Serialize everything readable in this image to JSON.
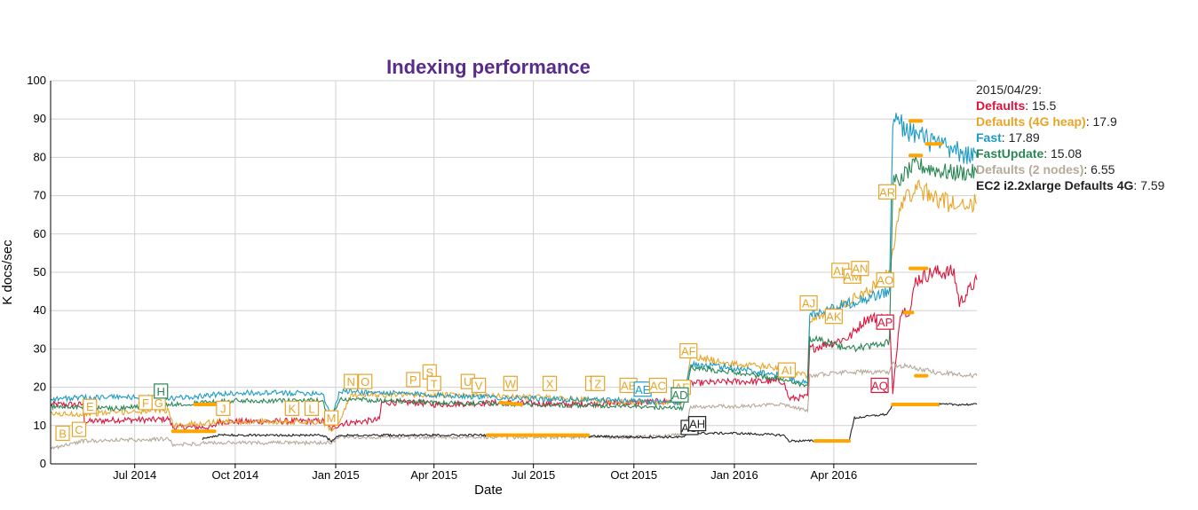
{
  "chart_data": {
    "type": "line",
    "title": "Indexing performance",
    "xlabel": "Date",
    "ylabel": "K docs/sec",
    "xlim": [
      "2014-04-15",
      "2016-08-10"
    ],
    "ylim": [
      0,
      100
    ],
    "y_ticks": [
      0,
      10,
      20,
      30,
      40,
      50,
      60,
      70,
      80,
      90,
      100
    ],
    "x_ticks": [
      {
        "date": "2014-07-01",
        "label": "Jul 2014"
      },
      {
        "date": "2014-10-01",
        "label": "Oct 2014"
      },
      {
        "date": "2015-01-01",
        "label": "Jan 2015"
      },
      {
        "date": "2015-04-01",
        "label": "Apr 2015"
      },
      {
        "date": "2015-07-01",
        "label": "Jul 2015"
      },
      {
        "date": "2015-10-01",
        "label": "Oct 2015"
      },
      {
        "date": "2016-01-01",
        "label": "Jan 2016"
      },
      {
        "date": "2016-04-01",
        "label": "Apr 2016"
      }
    ],
    "grid": true,
    "legend_placement": "right",
    "legend": {
      "date": "2015/04/29:",
      "entries": [
        {
          "name": "Defaults",
          "value": "15.5",
          "color": "#dc143c"
        },
        {
          "name": "Defaults (4G heap)",
          "value": "17.9",
          "color": "#e8a427"
        },
        {
          "name": "Fast",
          "value": "17.89",
          "color": "#1d9bc4"
        },
        {
          "name": "FastUpdate",
          "value": "15.08",
          "color": "#2a8653"
        },
        {
          "name": "Defaults (2 nodes)",
          "value": "6.55",
          "color": "#b5aa99"
        },
        {
          "name": "EC2 i2.2xlarge Defaults 4G",
          "value": "7.59",
          "color": "#222222"
        }
      ]
    },
    "series": [
      {
        "name": "Defaults",
        "color": "#dc143c",
        "noise": 0.8,
        "points": [
          [
            "2014-04-15",
            15.5
          ],
          [
            "2014-05-15",
            15.5
          ],
          [
            "2014-05-16",
            11
          ],
          [
            "2014-06-15",
            11.5
          ],
          [
            "2014-07-20",
            11.5
          ],
          [
            "2014-08-01",
            11.8
          ],
          [
            "2014-08-05",
            9.5
          ],
          [
            "2014-09-12",
            9.6
          ],
          [
            "2014-09-15",
            11
          ],
          [
            "2014-12-20",
            11.2
          ],
          [
            "2014-12-28",
            9
          ],
          [
            "2015-01-05",
            10.5
          ],
          [
            "2015-02-10",
            11.5
          ],
          [
            "2015-02-12",
            16
          ],
          [
            "2015-03-15",
            16
          ],
          [
            "2015-04-01",
            15.5
          ],
          [
            "2015-06-01",
            16
          ],
          [
            "2015-08-01",
            15.5
          ],
          [
            "2015-10-01",
            16
          ],
          [
            "2015-11-15",
            16.5
          ],
          [
            "2015-11-22",
            21
          ],
          [
            "2016-01-01",
            21.5
          ],
          [
            "2016-02-15",
            21.5
          ],
          [
            "2016-02-20",
            17
          ],
          [
            "2016-03-08",
            17.5
          ],
          [
            "2016-03-10",
            30
          ],
          [
            "2016-04-15",
            33
          ],
          [
            "2016-05-01",
            38
          ],
          [
            "2016-05-22",
            38
          ],
          [
            "2016-05-25",
            18
          ],
          [
            "2016-06-01",
            40
          ],
          [
            "2016-06-10",
            40
          ],
          [
            "2016-06-15",
            48
          ],
          [
            "2016-07-01",
            50
          ],
          [
            "2016-07-20",
            50
          ],
          [
            "2016-07-25",
            42
          ],
          [
            "2016-08-10",
            48
          ]
        ]
      },
      {
        "name": "Defaults (4G heap)",
        "color": "#e8a427",
        "noise": 0.7,
        "points": [
          [
            "2014-04-15",
            13
          ],
          [
            "2014-05-15",
            13
          ],
          [
            "2014-06-15",
            13.5
          ],
          [
            "2014-08-01",
            14
          ],
          [
            "2014-08-05",
            10
          ],
          [
            "2014-09-15",
            11
          ],
          [
            "2014-12-20",
            11
          ],
          [
            "2014-12-28",
            9
          ],
          [
            "2015-01-05",
            11
          ],
          [
            "2015-01-15",
            18
          ],
          [
            "2015-04-01",
            18
          ],
          [
            "2015-07-01",
            17.5
          ],
          [
            "2015-10-01",
            16
          ],
          [
            "2015-11-15",
            16
          ],
          [
            "2015-11-22",
            28
          ],
          [
            "2016-01-01",
            26
          ],
          [
            "2016-02-15",
            25
          ],
          [
            "2016-03-08",
            23
          ],
          [
            "2016-03-10",
            38
          ],
          [
            "2016-04-01",
            40
          ],
          [
            "2016-05-01",
            45
          ],
          [
            "2016-05-22",
            50
          ],
          [
            "2016-05-25",
            55
          ],
          [
            "2016-06-01",
            68
          ],
          [
            "2016-06-15",
            72
          ],
          [
            "2016-07-15",
            68
          ],
          [
            "2016-08-10",
            68
          ]
        ]
      },
      {
        "name": "Fast",
        "color": "#1d9bc4",
        "noise": 0.7,
        "points": [
          [
            "2014-04-15",
            17
          ],
          [
            "2014-06-15",
            17.5
          ],
          [
            "2014-08-01",
            17
          ],
          [
            "2014-10-01",
            18.5
          ],
          [
            "2014-12-20",
            18.5
          ],
          [
            "2014-12-28",
            12
          ],
          [
            "2015-01-05",
            19
          ],
          [
            "2015-04-01",
            18
          ],
          [
            "2015-07-01",
            17
          ],
          [
            "2015-10-01",
            16.5
          ],
          [
            "2015-11-15",
            16
          ],
          [
            "2015-11-22",
            26
          ],
          [
            "2016-01-01",
            25
          ],
          [
            "2016-02-15",
            23
          ],
          [
            "2016-03-08",
            21
          ],
          [
            "2016-03-10",
            39
          ],
          [
            "2016-04-15",
            42
          ],
          [
            "2016-05-10",
            44
          ],
          [
            "2016-05-22",
            45
          ],
          [
            "2016-05-25",
            90
          ],
          [
            "2016-06-15",
            86
          ],
          [
            "2016-07-15",
            82
          ],
          [
            "2016-08-10",
            80
          ]
        ]
      },
      {
        "name": "FastUpdate",
        "color": "#2a8653",
        "noise": 0.6,
        "points": [
          [
            "2014-04-15",
            15
          ],
          [
            "2014-06-15",
            14.5
          ],
          [
            "2014-08-01",
            15.5
          ],
          [
            "2014-10-01",
            16.5
          ],
          [
            "2014-12-20",
            16.5
          ],
          [
            "2014-12-26",
            11
          ],
          [
            "2015-01-05",
            17
          ],
          [
            "2015-04-01",
            16
          ],
          [
            "2015-07-01",
            15.5
          ],
          [
            "2015-10-01",
            15
          ],
          [
            "2015-11-15",
            14.5
          ],
          [
            "2015-11-22",
            25
          ],
          [
            "2016-01-01",
            24
          ],
          [
            "2016-02-15",
            22
          ],
          [
            "2016-03-08",
            20
          ],
          [
            "2016-03-10",
            33
          ],
          [
            "2016-04-15",
            30
          ],
          [
            "2016-05-10",
            31
          ],
          [
            "2016-05-22",
            32
          ],
          [
            "2016-05-25",
            73
          ],
          [
            "2016-06-15",
            78
          ],
          [
            "2016-07-15",
            76
          ],
          [
            "2016-08-10",
            76
          ]
        ]
      },
      {
        "name": "Defaults (2 nodes)",
        "color": "#b5aa99",
        "noise": 0.5,
        "points": [
          [
            "2014-04-15",
            4
          ],
          [
            "2014-05-15",
            6
          ],
          [
            "2014-08-01",
            6.5
          ],
          [
            "2014-08-05",
            5
          ],
          [
            "2014-09-15",
            5.5
          ],
          [
            "2014-12-28",
            5.5
          ],
          [
            "2015-01-05",
            7
          ],
          [
            "2015-04-01",
            7
          ],
          [
            "2015-10-01",
            7
          ],
          [
            "2015-11-15",
            7.5
          ],
          [
            "2015-11-22",
            15
          ],
          [
            "2016-01-01",
            15
          ],
          [
            "2016-02-15",
            15.5
          ],
          [
            "2016-03-08",
            14
          ],
          [
            "2016-03-10",
            23
          ],
          [
            "2016-04-15",
            24
          ],
          [
            "2016-05-22",
            24
          ],
          [
            "2016-05-25",
            26
          ],
          [
            "2016-06-15",
            25
          ],
          [
            "2016-07-01",
            24
          ],
          [
            "2016-08-10",
            23
          ]
        ]
      },
      {
        "name": "EC2 i2.2xlarge Defaults 4G",
        "color": "#222222",
        "noise": 0.3,
        "points": [
          [
            "2014-09-01",
            6.5
          ],
          [
            "2014-09-15",
            7.5
          ],
          [
            "2014-12-20",
            7.5
          ],
          [
            "2014-12-28",
            6
          ],
          [
            "2015-01-05",
            7.5
          ],
          [
            "2015-04-01",
            7.5
          ],
          [
            "2015-07-01",
            7.5
          ],
          [
            "2015-10-01",
            7
          ],
          [
            "2015-11-15",
            7
          ],
          [
            "2015-11-22",
            8
          ],
          [
            "2016-01-01",
            8
          ],
          [
            "2016-02-15",
            7.5
          ],
          [
            "2016-02-20",
            6
          ],
          [
            "2016-04-15",
            6
          ],
          [
            "2016-04-20",
            12
          ],
          [
            "2016-05-20",
            13
          ],
          [
            "2016-05-25",
            15.5
          ],
          [
            "2016-06-15",
            15.5
          ],
          [
            "2016-08-10",
            15.5
          ]
        ]
      }
    ],
    "highlight_segments": {
      "color": "#ffa500",
      "segments": [
        [
          [
            "2014-08-05",
            8.5
          ],
          [
            "2014-09-12",
            8.5
          ]
        ],
        [
          [
            "2014-08-25",
            15.5
          ],
          [
            "2014-09-20",
            15.5
          ]
        ],
        [
          [
            "2015-05-20",
            7.5
          ],
          [
            "2015-08-20",
            7.5
          ]
        ],
        [
          [
            "2015-06-01",
            16
          ],
          [
            "2015-06-20",
            15.5
          ]
        ],
        [
          [
            "2016-03-15",
            6
          ],
          [
            "2016-04-15",
            6
          ]
        ],
        [
          [
            "2016-06-10",
            51
          ],
          [
            "2016-06-25",
            51
          ]
        ],
        [
          [
            "2016-06-25",
            83.5
          ],
          [
            "2016-07-08",
            83.5
          ]
        ],
        [
          [
            "2016-06-10",
            89.5
          ],
          [
            "2016-06-20",
            89.5
          ]
        ],
        [
          [
            "2016-06-10",
            80.5
          ],
          [
            "2016-06-20",
            80.5
          ]
        ],
        [
          [
            "2016-06-05",
            39.5
          ],
          [
            "2016-06-12",
            39.5
          ]
        ],
        [
          [
            "2016-06-15",
            23
          ],
          [
            "2016-06-25",
            23
          ]
        ],
        [
          [
            "2016-05-25",
            15.5
          ],
          [
            "2016-07-05",
            15.5
          ]
        ]
      ]
    },
    "annotations": [
      {
        "label": "B",
        "date": "2014-04-26",
        "y": 8,
        "color": "#e8a427"
      },
      {
        "label": "C",
        "date": "2014-05-11",
        "y": 9,
        "color": "#e8a427"
      },
      {
        "label": "E",
        "date": "2014-05-21",
        "y": 15,
        "color": "#e8a427"
      },
      {
        "label": "F",
        "date": "2014-07-11",
        "y": 16,
        "color": "#e8a427"
      },
      {
        "label": "G",
        "date": "2014-07-23",
        "y": 16,
        "color": "#e8a427"
      },
      {
        "label": "H",
        "date": "2014-07-25",
        "y": 19,
        "color": "#2a8653"
      },
      {
        "label": "J",
        "date": "2014-09-20",
        "y": 14.5,
        "color": "#e8a427"
      },
      {
        "label": "K",
        "date": "2014-11-22",
        "y": 14.5,
        "color": "#e8a427"
      },
      {
        "label": "L",
        "date": "2014-12-10",
        "y": 14.5,
        "color": "#e8a427"
      },
      {
        "label": "M",
        "date": "2014-12-28",
        "y": 12,
        "color": "#e8a427"
      },
      {
        "label": "N",
        "date": "2015-01-15",
        "y": 21.5,
        "color": "#e8a427"
      },
      {
        "label": "O",
        "date": "2015-01-28",
        "y": 21.5,
        "color": "#e8a427"
      },
      {
        "label": "P",
        "date": "2015-03-13",
        "y": 22,
        "color": "#e8a427"
      },
      {
        "label": "S",
        "date": "2015-03-28",
        "y": 24,
        "color": "#e8a427"
      },
      {
        "label": "T",
        "date": "2015-04-01",
        "y": 21,
        "color": "#e8a427"
      },
      {
        "label": "U",
        "date": "2015-05-02",
        "y": 21.5,
        "color": "#e8a427"
      },
      {
        "label": "V",
        "date": "2015-05-12",
        "y": 20.5,
        "color": "#e8a427"
      },
      {
        "label": "W",
        "date": "2015-06-10",
        "y": 21,
        "color": "#e8a427"
      },
      {
        "label": "X",
        "date": "2015-07-16",
        "y": 21,
        "color": "#e8a427"
      },
      {
        "label": "Y",
        "date": "2015-08-24",
        "y": 21,
        "color": "#e8a427"
      },
      {
        "label": "Z",
        "date": "2015-08-29",
        "y": 21,
        "color": "#e8a427"
      },
      {
        "label": "AB",
        "date": "2015-09-26",
        "y": 20.5,
        "color": "#e8a427"
      },
      {
        "label": "AE",
        "date": "2015-10-09",
        "y": 19.5,
        "color": "#1d9bc4"
      },
      {
        "label": "AC",
        "date": "2015-10-23",
        "y": 20.5,
        "color": "#e8a427"
      },
      {
        "label": "AF",
        "date": "2015-11-14",
        "y": 20,
        "color": "#e8a427"
      },
      {
        "label": "AD",
        "date": "2015-11-12",
        "y": 18,
        "color": "#2a8653"
      },
      {
        "label": "AF",
        "date": "2015-11-20",
        "y": 29.5,
        "color": "#e8a427"
      },
      {
        "label": "AG",
        "date": "2015-11-21",
        "y": 9.5,
        "color": "#222222"
      },
      {
        "label": "AH",
        "date": "2015-11-28",
        "y": 10.5,
        "color": "#222222"
      },
      {
        "label": "AI",
        "date": "2016-02-18",
        "y": 24.5,
        "color": "#e8a427"
      },
      {
        "label": "AJ",
        "date": "2016-03-09",
        "y": 42,
        "color": "#e8a427"
      },
      {
        "label": "AK",
        "date": "2016-04-01",
        "y": 38.5,
        "color": "#e8a427"
      },
      {
        "label": "AL",
        "date": "2016-04-07",
        "y": 50.5,
        "color": "#e8a427"
      },
      {
        "label": "AM",
        "date": "2016-04-18",
        "y": 49,
        "color": "#e8a427"
      },
      {
        "label": "AN",
        "date": "2016-04-25",
        "y": 51,
        "color": "#e8a427"
      },
      {
        "label": "AO",
        "date": "2016-05-18",
        "y": 48,
        "color": "#e8a427"
      },
      {
        "label": "AP",
        "date": "2016-05-18",
        "y": 37,
        "color": "#dc143c"
      },
      {
        "label": "AQ",
        "date": "2016-05-13",
        "y": 20.5,
        "color": "#dc143c"
      },
      {
        "label": "AR",
        "date": "2016-05-20",
        "y": 71,
        "color": "#e8a427"
      }
    ]
  }
}
